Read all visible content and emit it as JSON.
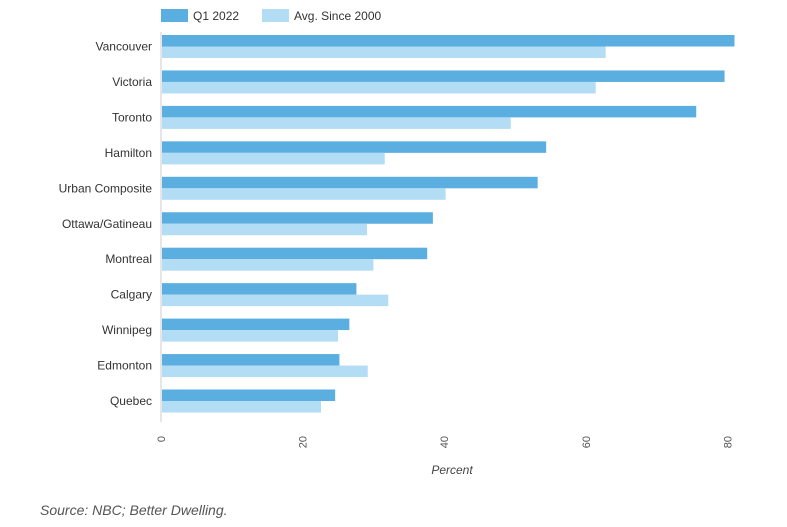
{
  "chart_data": {
    "type": "bar",
    "orientation": "horizontal",
    "categories": [
      "Vancouver",
      "Victoria",
      "Toronto",
      "Hamilton",
      "Urban Composite",
      "Ottawa/Gatineau",
      "Montreal",
      "Calgary",
      "Winnipeg",
      "Edmonton",
      "Quebec"
    ],
    "series": [
      {
        "name": "Q1 2022",
        "color": "#5aaee0",
        "values": [
          81.0,
          79.6,
          75.6,
          54.4,
          53.2,
          38.4,
          37.6,
          27.6,
          26.6,
          25.2,
          24.6
        ]
      },
      {
        "name": "Avg. Since 2000",
        "color": "#b3dcf5",
        "values": [
          62.8,
          61.4,
          49.4,
          31.6,
          40.2,
          29.1,
          30.0,
          32.1,
          25.0,
          29.2,
          22.6
        ]
      }
    ],
    "xlabel": "Percent",
    "xlim": [
      0,
      82
    ],
    "xticks": [
      0,
      20,
      40,
      60,
      80
    ],
    "legend_position": "top-left",
    "grid": false
  },
  "source": "Source: NBC; Better Dwelling."
}
